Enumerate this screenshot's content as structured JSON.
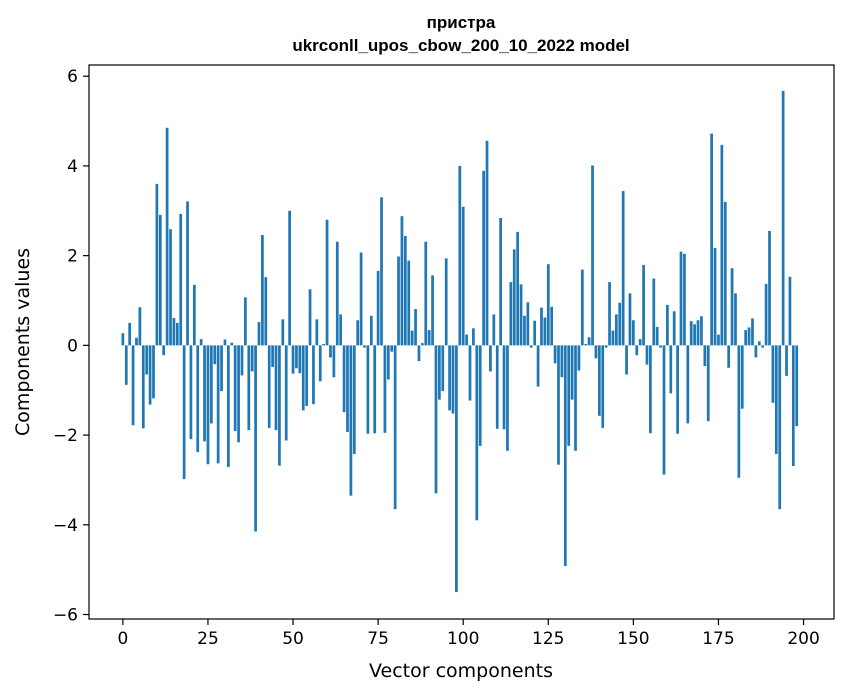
{
  "chart_data": {
    "type": "bar",
    "title": "пристра",
    "subtitle": "ukrconll_upos_cbow_200_10_2022 model",
    "xlabel": "Vector components",
    "ylabel": "Components values",
    "xlim": [
      -9.95,
      208.95
    ],
    "ylim": [
      -6.1,
      6.25
    ],
    "xticks": [
      0,
      25,
      50,
      75,
      100,
      125,
      150,
      175,
      200
    ],
    "xtick_labels": [
      "0",
      "25",
      "50",
      "75",
      "100",
      "125",
      "150",
      "175",
      "200"
    ],
    "yticks": [
      -6,
      -4,
      -2,
      0,
      2,
      4,
      6
    ],
    "ytick_labels": [
      "−6",
      "−4",
      "−2",
      "0",
      "2",
      "4",
      "6"
    ],
    "grid": false,
    "bar_color": "#1f77b4",
    "values": [
      0.27,
      -0.88,
      0.5,
      -1.78,
      0.17,
      0.85,
      -1.85,
      -0.65,
      -1.32,
      -1.18,
      3.6,
      2.91,
      -0.22,
      4.85,
      2.59,
      0.61,
      0.5,
      2.93,
      -2.98,
      3.21,
      -2.09,
      1.35,
      -2.38,
      0.14,
      -2.14,
      -2.65,
      -1.74,
      -0.42,
      -2.63,
      -1.02,
      0.13,
      -2.71,
      0.06,
      -1.91,
      -2.16,
      -0.67,
      1.07,
      -1.89,
      -0.58,
      -4.15,
      0.52,
      2.46,
      1.52,
      -1.84,
      -0.48,
      -1.89,
      -2.68,
      0.58,
      -2.12,
      3.0,
      -0.63,
      -0.51,
      -0.62,
      -1.45,
      -1.35,
      1.25,
      -1.31,
      0.58,
      -0.8,
      0.03,
      2.8,
      -0.27,
      -0.71,
      2.31,
      0.69,
      -1.49,
      -1.93,
      -3.35,
      -2.42,
      0.56,
      2.07,
      -0.05,
      -1.97,
      0.66,
      -1.96,
      1.66,
      3.3,
      -1.95,
      -0.76,
      -0.14,
      -3.65,
      1.98,
      2.88,
      2.44,
      1.89,
      0.33,
      0.81,
      -0.35,
      0.05,
      2.31,
      0.34,
      1.56,
      -3.3,
      -1.21,
      -1.02,
      1.94,
      -1.45,
      -1.52,
      -5.5,
      4.0,
      3.09,
      0.24,
      -1.23,
      0.38,
      -3.9,
      -2.24,
      3.89,
      4.56,
      -0.58,
      0.69,
      -1.86,
      2.84,
      -1.87,
      -2.35,
      1.41,
      2.14,
      2.53,
      1.36,
      0.66,
      0.96,
      -0.05,
      0.55,
      -0.92,
      0.84,
      0.62,
      1.81,
      0.86,
      -0.4,
      -2.66,
      -0.71,
      -4.92,
      -2.24,
      -1.21,
      -2.35,
      -0.56,
      1.69,
      0.03,
      0.18,
      4.01,
      -0.29,
      -1.57,
      -1.84,
      -0.05,
      1.41,
      0.33,
      0.69,
      0.95,
      3.44,
      -0.65,
      1.16,
      0.56,
      -0.22,
      0.14,
      1.79,
      -0.43,
      -1.96,
      1.49,
      0.41,
      -0.05,
      -2.88,
      0.9,
      -1.07,
      0.76,
      -1.97,
      2.09,
      2.04,
      -1.74,
      0.54,
      0.47,
      0.56,
      0.65,
      -0.46,
      -1.69,
      4.72,
      2.17,
      0.24,
      4.47,
      3.2,
      -0.5,
      1.72,
      1.16,
      -2.95,
      -1.41,
      0.34,
      0.4,
      0.6,
      -0.27,
      0.09,
      -0.05,
      1.37,
      2.55,
      -1.28,
      -2.42,
      -3.65,
      5.67,
      -0.68,
      1.53,
      -2.69,
      -1.8,
      0.0
    ]
  }
}
